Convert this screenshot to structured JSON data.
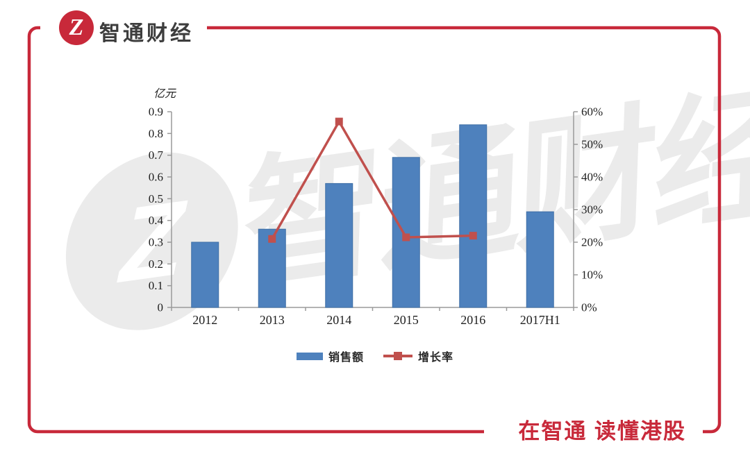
{
  "header": {
    "logo_text": "智通财经",
    "logo_glyph": "Z"
  },
  "footer": {
    "slogan": "在智通  读懂港股"
  },
  "watermark": {
    "glyph": "Z",
    "text": "智通财经"
  },
  "chart_data": {
    "type": "combo",
    "categories": [
      "2012",
      "2013",
      "2014",
      "2015",
      "2016",
      "2017H1"
    ],
    "series": [
      {
        "name": "销售额",
        "type": "bar",
        "axis": "left",
        "color": "#4e81bd",
        "values": [
          0.3,
          0.36,
          0.57,
          0.69,
          0.84,
          0.44
        ]
      },
      {
        "name": "增长率",
        "type": "line",
        "axis": "right",
        "color": "#c0504d",
        "values": [
          null,
          21,
          57,
          21.5,
          22,
          null
        ]
      }
    ],
    "left_axis": {
      "title": "亿元",
      "min": 0,
      "max": 0.9,
      "ticks": [
        "0",
        "0.1",
        "0.2",
        "0.3",
        "0.4",
        "0.5",
        "0.6",
        "0.7",
        "0.8",
        "0.9"
      ]
    },
    "right_axis": {
      "min": 0,
      "max": 60,
      "ticks": [
        "0%",
        "10%",
        "20%",
        "30%",
        "40%",
        "50%",
        "60%"
      ]
    },
    "legend_position": "bottom",
    "grid": false
  },
  "colors": {
    "brand_red": "#c8293a",
    "bar_blue": "#4e81bd",
    "bar_blue_edge": "#3e6fa6",
    "line_red": "#c0504d",
    "axis_gray": "#9a9a9a",
    "text_dark": "#1f1f1f",
    "brand_text": "#3d3d3d",
    "watermark_gray": "#ebebeb"
  }
}
